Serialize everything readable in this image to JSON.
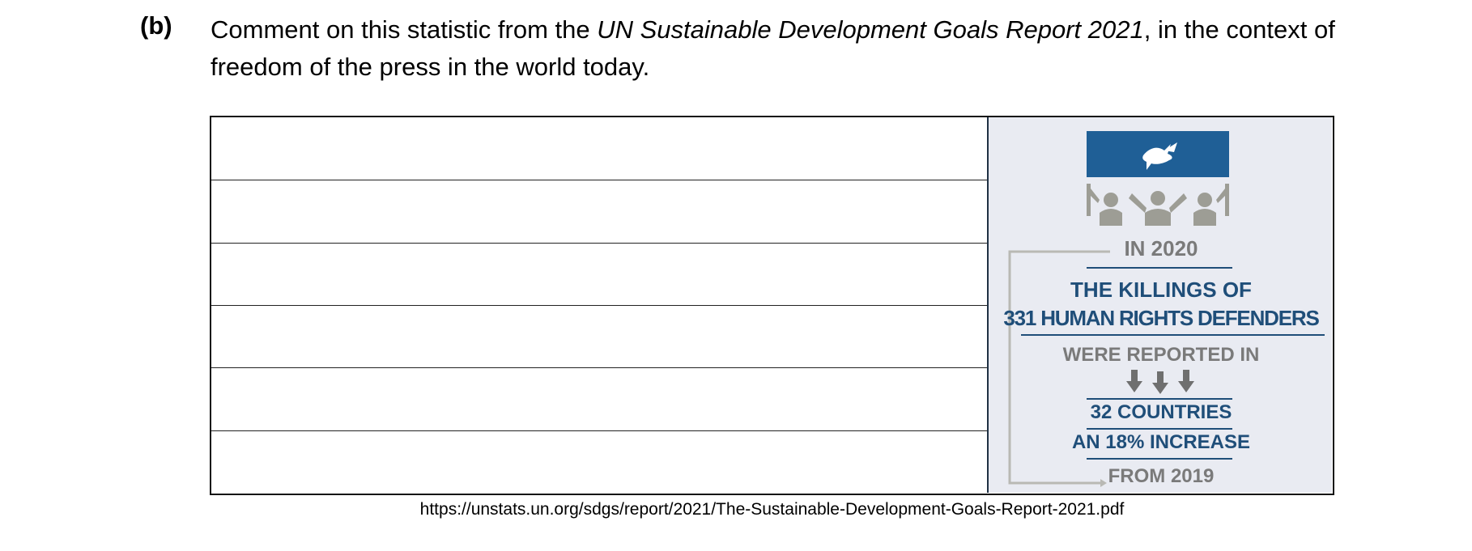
{
  "question": {
    "label": "(b)",
    "text_before": "Comment on this statistic from the ",
    "text_italic": "UN Sustainable Development Goals Report 2021",
    "text_after": ", in the context of freedom of the press in the world today."
  },
  "answer_lines": {
    "count": 6
  },
  "infographic": {
    "line1": "IN 2020",
    "line2": "THE KILLINGS OF",
    "line3": "331 HUMAN RIGHTS DEFENDERS",
    "line4": "WERE REPORTED IN",
    "line5": "32 COUNTRIES",
    "line6": "AN 18% INCREASE",
    "line7": "FROM 2019",
    "icons": [
      "dove-icon",
      "people-raised-arms-icon",
      "down-arrow-icon"
    ],
    "colors": {
      "banner_blue": "#1f5f96",
      "text_blue": "#1f4e79",
      "text_gray": "#7a7a7a",
      "panel_bg": "#e9ebf2"
    }
  },
  "source": {
    "url": "https://unstats.un.org/sdgs/report/2021/The-Sustainable-Development-Goals-Report-2021.pdf"
  }
}
